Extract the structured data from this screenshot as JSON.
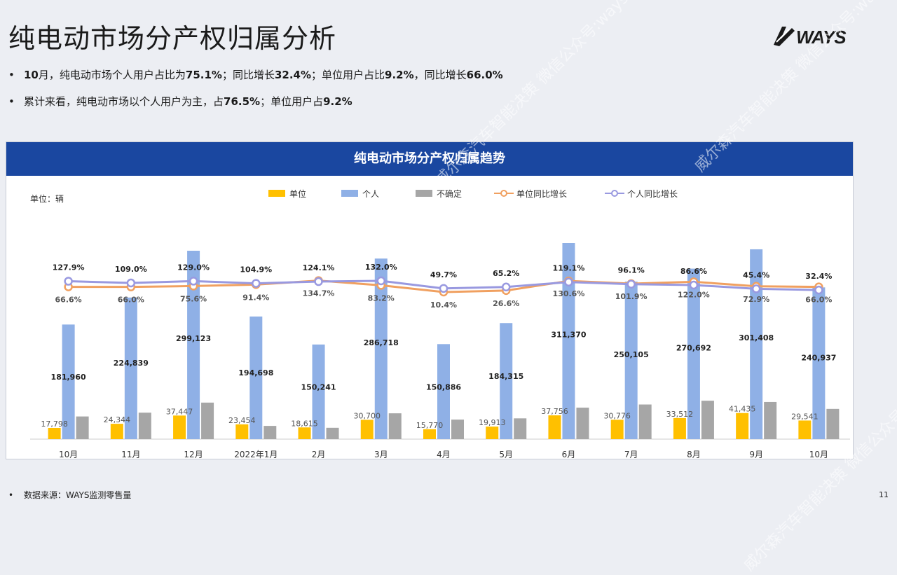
{
  "page": {
    "title": "纯电动市场分产权归属分析",
    "logo_text": "WAYS",
    "bullets": [
      {
        "parts": [
          "10",
          "月，纯电动市场个人用户占比为",
          "75.1%",
          "；同比增长",
          "32.4%",
          "；单位用户占比",
          "9.2%",
          "，同比增长",
          "66.0%"
        ]
      },
      {
        "parts": [
          "累计来看，纯电动市场以个人用户为主，占",
          "76.5%",
          "；单位用户占",
          "9.2%"
        ]
      }
    ],
    "footer": "数据来源：WAYS监测零售量",
    "page_number": "11",
    "watermark": "威尔森汽车智能决策 微信公众号:ways-data"
  },
  "chart_data": {
    "type": "bar",
    "title": "纯电动市场分产权归属趋势",
    "unit_label": "单位：辆",
    "categories": [
      "10月",
      "11月",
      "12月",
      "2022年1月",
      "2月",
      "3月",
      "4月",
      "5月",
      "6月",
      "7月",
      "8月",
      "9月",
      "10月"
    ],
    "series": [
      {
        "name": "单位",
        "kind": "bar",
        "color": "#ffc000",
        "values": [
          17798,
          24344,
          37447,
          23454,
          18615,
          30700,
          15770,
          19913,
          37756,
          30776,
          33512,
          41435,
          29541
        ],
        "labels": [
          "17,798",
          "24,344",
          "37,447",
          "23,454",
          "18,615",
          "30,700",
          "15,770",
          "19,913",
          "37,756",
          "30,776",
          "33,512",
          "41,435",
          "29,541"
        ]
      },
      {
        "name": "个人",
        "kind": "bar",
        "color": "#8fb0e6",
        "values": [
          181960,
          224839,
          299123,
          194698,
          150241,
          286718,
          150886,
          184315,
          311370,
          250105,
          270692,
          301408,
          240937
        ],
        "labels": [
          "181,960",
          "224,839",
          "299,123",
          "194,698",
          "150,241",
          "286,718",
          "150,886",
          "184,315",
          "311,370",
          "250,105",
          "270,692",
          "301,408",
          "240,937"
        ]
      },
      {
        "name": "不确定",
        "kind": "bar",
        "color": "#a6a6a6",
        "values": [
          36000,
          42000,
          58000,
          21000,
          18000,
          41000,
          31000,
          33000,
          50000,
          55000,
          61000,
          59000,
          48000
        ]
      },
      {
        "name": "单位同比增长",
        "kind": "line",
        "color": "#f0a060",
        "values": [
          66.6,
          66.0,
          75.6,
          91.4,
          134.7,
          83.2,
          10.4,
          26.6,
          130.6,
          101.9,
          122.0,
          72.9,
          66.0
        ],
        "labels": [
          "66.6%",
          "66.0%",
          "75.6%",
          "91.4%",
          "134.7%",
          "83.2%",
          "10.4%",
          "26.6%",
          "130.6%",
          "101.9%",
          "122.0%",
          "72.9%",
          "66.0%"
        ]
      },
      {
        "name": "个人同比增长",
        "kind": "line",
        "color": "#9999e0",
        "values": [
          127.9,
          109.0,
          129.0,
          104.9,
          124.1,
          132.0,
          49.7,
          65.2,
          119.1,
          96.1,
          86.6,
          45.4,
          32.4
        ],
        "labels": [
          "127.9%",
          "109.0%",
          "129.0%",
          "104.9%",
          "124.1%",
          "132.0%",
          "49.7%",
          "65.2%",
          "119.1%",
          "96.1%",
          "86.6%",
          "45.4%",
          "32.4%"
        ]
      }
    ],
    "legend_position": "top",
    "grid": false
  }
}
